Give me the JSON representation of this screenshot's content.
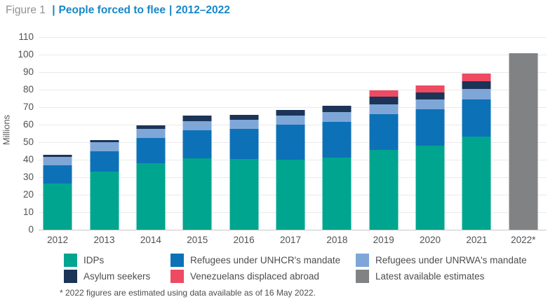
{
  "title": {
    "prefix": "Figure 1",
    "separator": "|",
    "main": "People forced to flee",
    "range": "2012–2022"
  },
  "footnote": {
    "text": "* 2022 figures are estimated using data available as of 16 May 2022."
  },
  "colors": {
    "title_blue": "#1787c9",
    "title_gray": "#8e9193",
    "gridline": "#e9eaec",
    "axis_text": "#4f5152"
  },
  "chart_data": {
    "type": "bar",
    "stacked": true,
    "title": "Figure 1 | People forced to flee | 2012–2022",
    "xlabel": "",
    "ylabel": "Millions",
    "ylim": [
      0,
      110
    ],
    "ytick_step": 10,
    "grid": true,
    "legend_position": "bottom",
    "categories": [
      "2012",
      "2013",
      "2014",
      "2015",
      "2016",
      "2017",
      "2018",
      "2019",
      "2020",
      "2021",
      "2022*"
    ],
    "series": [
      {
        "name": "IDPs",
        "color": "#00a58f",
        "values": [
          26.4,
          33.3,
          38.2,
          40.8,
          40.3,
          40.0,
          41.4,
          45.7,
          48.0,
          53.2,
          0
        ]
      },
      {
        "name": "Refugees under UNHCR's mandate",
        "color": "#0d71b7",
        "values": [
          10.5,
          11.7,
          14.4,
          16.1,
          17.2,
          19.9,
          20.4,
          20.4,
          20.7,
          21.3,
          0
        ]
      },
      {
        "name": "Refugees under UNRWA's mandate",
        "color": "#7ea7d8",
        "values": [
          4.9,
          5.0,
          5.1,
          5.2,
          5.3,
          5.4,
          5.5,
          5.6,
          5.7,
          5.8,
          0
        ]
      },
      {
        "name": "Asylum seekers",
        "color": "#1b3458",
        "values": [
          0.9,
          1.2,
          1.8,
          3.2,
          2.8,
          3.1,
          3.5,
          4.2,
          4.1,
          4.6,
          0
        ]
      },
      {
        "name": "Venezuelans displaced abroad",
        "color": "#ee4a62",
        "values": [
          0,
          0,
          0,
          0,
          0,
          0,
          0,
          3.6,
          3.9,
          4.4,
          0
        ]
      },
      {
        "name": "Latest available estimates",
        "color": "#818284",
        "values": [
          0,
          0,
          0,
          0,
          0,
          0,
          0,
          0,
          0,
          0,
          101
        ]
      }
    ]
  }
}
